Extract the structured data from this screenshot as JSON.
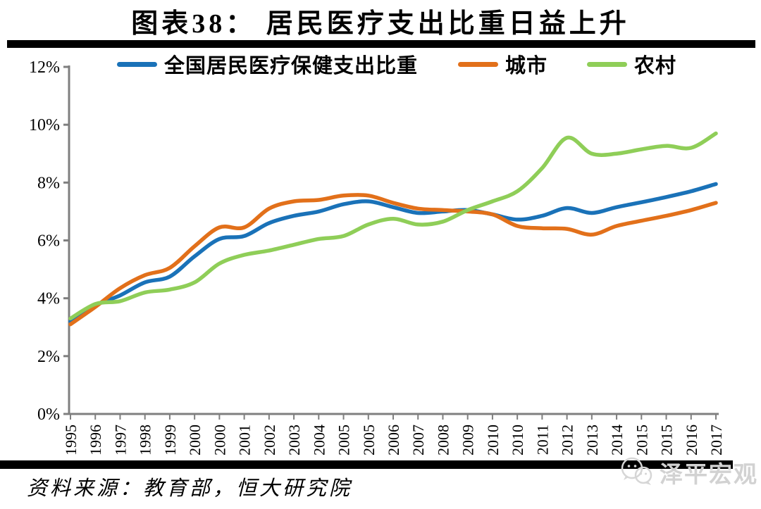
{
  "title": "图表38： 居民医疗支出比重日益上升",
  "source_note": "资料来源：教育部，恒大研究院",
  "watermark": {
    "label": "泽平宏观",
    "icon": "wechat-icon"
  },
  "colors": {
    "axis": "#7f7f7f",
    "divider": "#000000",
    "watermark": "#d2d2d2",
    "national_blue": "#1A72B8",
    "urban_orange": "#E2701A",
    "rural_green": "#8FCE58"
  },
  "chart_data": {
    "type": "line",
    "title": "图表38： 居民医疗支出比重日益上升",
    "xlabel": "",
    "ylabel": "",
    "ylim": [
      0,
      12
    ],
    "ytick_labels": [
      "12%",
      "10%",
      "8%",
      "6%",
      "4%",
      "2%",
      "0%"
    ],
    "grid": false,
    "legend_position": "top",
    "categories": [
      "1995",
      "1996",
      "1997",
      "1998",
      "1999",
      "2000",
      "2000",
      "2001",
      "2002",
      "2003",
      "2004",
      "2005",
      "2005",
      "2006",
      "2007",
      "2008",
      "2009",
      "2010",
      "2010",
      "2011",
      "2012",
      "2013",
      "2014",
      "2015",
      "2015",
      "2016",
      "2017"
    ],
    "series": [
      {
        "id": "national",
        "name": "全国居民医疗保健支出比重",
        "color": "#1A72B8",
        "values": [
          3.2,
          3.75,
          4.1,
          4.55,
          4.75,
          5.45,
          6.05,
          6.15,
          6.6,
          6.85,
          7.0,
          7.25,
          7.35,
          7.15,
          6.95,
          7.0,
          7.05,
          6.9,
          6.72,
          6.85,
          7.12,
          6.95,
          7.15,
          7.32,
          7.5,
          7.7,
          7.95
        ]
      },
      {
        "id": "urban",
        "name": "城市",
        "color": "#E2701A",
        "values": [
          3.1,
          3.7,
          4.35,
          4.8,
          5.05,
          5.8,
          6.45,
          6.45,
          7.1,
          7.35,
          7.4,
          7.55,
          7.55,
          7.3,
          7.1,
          7.05,
          7.0,
          6.9,
          6.5,
          6.42,
          6.4,
          6.2,
          6.5,
          6.68,
          6.85,
          7.05,
          7.3
        ]
      },
      {
        "id": "rural",
        "name": "农村",
        "color": "#8FCE58",
        "values": [
          3.3,
          3.8,
          3.9,
          4.2,
          4.3,
          4.55,
          5.2,
          5.5,
          5.65,
          5.85,
          6.05,
          6.15,
          6.55,
          6.75,
          6.55,
          6.65,
          7.05,
          7.35,
          7.7,
          8.5,
          9.55,
          9.0,
          9.0,
          9.15,
          9.27,
          9.2,
          9.7
        ]
      }
    ]
  }
}
